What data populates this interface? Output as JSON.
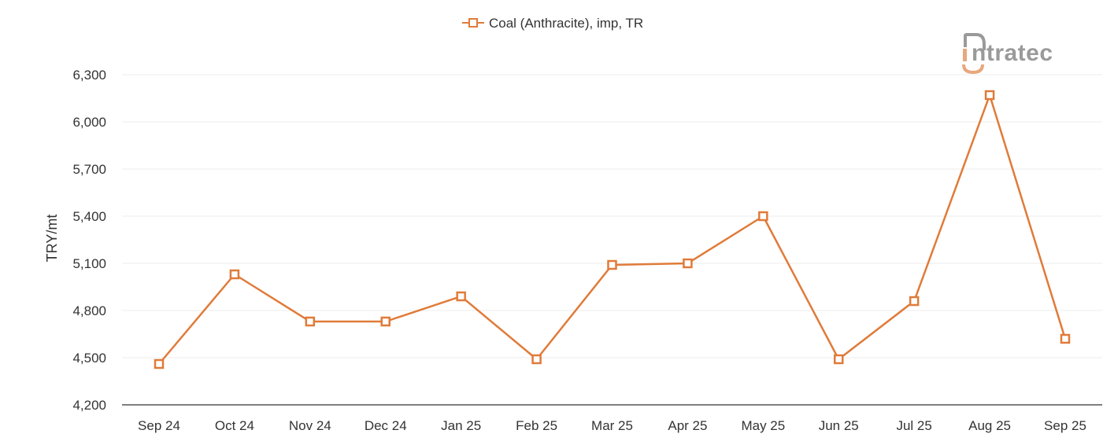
{
  "brand": {
    "name": "intratec",
    "logo_letter": "i",
    "logo_rest": "ntratec",
    "accent_color": "#e8a87c",
    "text_color": "#9a9a9a"
  },
  "colors": {
    "series": "#e07b39",
    "grid": "#ececec",
    "axis": "#555555"
  },
  "chart_data": {
    "type": "line",
    "title": "",
    "xlabel": "",
    "ylabel": "TRY/mt",
    "categories": [
      "Sep 24",
      "Oct 24",
      "Nov 24",
      "Dec 24",
      "Jan 25",
      "Feb 25",
      "Mar 25",
      "Apr 25",
      "May 25",
      "Jun 25",
      "Jul 25",
      "Aug 25",
      "Sep 25"
    ],
    "series": [
      {
        "name": "Coal (Anthracite), imp, TR",
        "marker": "square-hollow",
        "values": [
          4460,
          5030,
          4730,
          4730,
          4890,
          4490,
          5090,
          5100,
          5400,
          4490,
          4860,
          6170,
          4620
        ]
      }
    ],
    "ylim": [
      4200,
      6300
    ],
    "yticks": [
      4200,
      4500,
      4800,
      5100,
      5400,
      5700,
      6000,
      6300
    ],
    "ytick_labels": [
      "4,200",
      "4,500",
      "4,800",
      "5,100",
      "5,400",
      "5,700",
      "6,000",
      "6,300"
    ],
    "grid": true,
    "legend_position": "top-center"
  }
}
